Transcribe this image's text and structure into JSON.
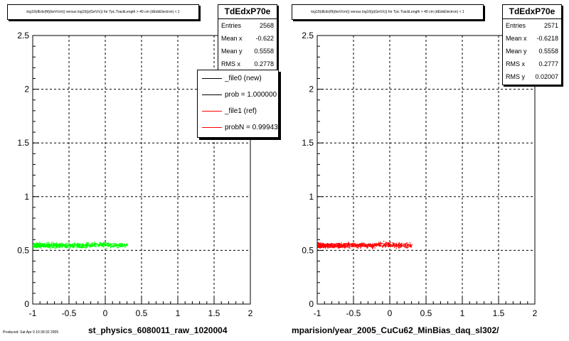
{
  "panels": [
    {
      "title": "log10(dEdx(fit)(keV/cm)) versus log10(p(GeV/c)) for Tpc.TrackLength > 40 cm (dEdxElectron) < 1",
      "x_title": "st_physics_6080011_raw_1020004",
      "marker_color": "#00ff00",
      "stats": {
        "name": "TdEdxP70e",
        "rows": [
          {
            "key": "Entries",
            "value": "2568"
          },
          {
            "key": "Mean x",
            "value": "-0.622"
          },
          {
            "key": "Mean y",
            "value": "0.5558"
          },
          {
            "key": "RMS x",
            "value": "0.2778"
          }
        ]
      }
    },
    {
      "title": "log10(dEdx(fit)(keV/cm)) versus log10(p(GeV/c)) for Tpc.TrackLength > 40 cm (dEdxElectron) < 1",
      "x_title": "mparision/year_2005_CuCu62_MinBias_daq_sl302/",
      "marker_color": "#ff0000",
      "stats": {
        "name": "TdEdxP70e",
        "rows": [
          {
            "key": "Entries",
            "value": "2571"
          },
          {
            "key": "Mean x",
            "value": "-0.6218"
          },
          {
            "key": "Mean y",
            "value": "0.5558"
          },
          {
            "key": "RMS x",
            "value": "0.2777"
          },
          {
            "key": "RMS y",
            "value": "0.02007"
          }
        ]
      }
    }
  ],
  "legend": {
    "entries": [
      {
        "label": "_file0 (new)",
        "color": "#000000"
      },
      {
        "label": "prob = 1.000000",
        "color": "#000000"
      },
      {
        "label": "_file1 (ref)",
        "color": "#ff0000"
      },
      {
        "label": "probN = 0.99943",
        "color": "#ff0000"
      }
    ]
  },
  "footer": "Produced: Sat Apr 9 10:39:32 2005",
  "chart_data": {
    "type": "scatter",
    "xlim": [
      -1,
      2
    ],
    "ylim": [
      0,
      2.5
    ],
    "x_ticks": [
      "-1",
      "-0.5",
      "0",
      "0.5",
      "1",
      "1.5",
      "2"
    ],
    "y_ticks": [
      "0",
      "0.5",
      "1",
      "1.5",
      "2",
      "2.5"
    ],
    "grid": true,
    "series": [
      {
        "name": "_file0 (new)",
        "color": "#00ff00",
        "cluster": {
          "x_range": [
            -1,
            0.3
          ],
          "y_center": 0.55,
          "y_spread": 0.02
        }
      },
      {
        "name": "_file1 (ref)",
        "color": "#ff0000",
        "cluster": {
          "x_range": [
            -1,
            0.3
          ],
          "y_center": 0.55,
          "y_spread": 0.02
        }
      }
    ]
  }
}
